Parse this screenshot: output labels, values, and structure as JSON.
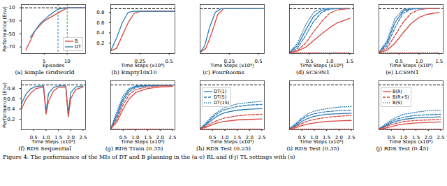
{
  "figure_caption": "Figure 4: The performance of the MIs of DT and B planning in the (a-e) RL and (f-j) TL settings with (s)",
  "chart_data": [
    {
      "type": "line",
      "title": "(a) Simple Gridworld",
      "xlabel": "Episodes",
      "ylabel": "Performance (Env)",
      "xlim": [
        0,
        14
      ],
      "xticks": [
        5,
        10
      ],
      "ylim": [
        -80,
        -5
      ],
      "yticks": [
        -70,
        -50,
        -30,
        -10
      ],
      "reference_y": -10,
      "reference_x": [
        {
          "value": 8,
          "color": "#2c7bb6"
        },
        {
          "value": 10,
          "color": "#2ca02c"
        }
      ],
      "legend": "lower right",
      "legend_entries": [
        "B",
        "DT"
      ],
      "series": [
        {
          "name": "B",
          "color": "#d9453d",
          "line_style": "solid",
          "x": [
            1,
            3,
            5,
            7,
            9,
            10,
            12,
            14
          ],
          "values": [
            -75,
            -45,
            -30,
            -22,
            -14,
            -10,
            -10,
            -10
          ]
        },
        {
          "name": "DT",
          "color": "#2c7bb6",
          "line_style": "solid",
          "x": [
            2,
            4,
            6,
            8,
            10,
            12,
            14
          ],
          "values": [
            -55,
            -35,
            -22,
            -12,
            -10,
            -10,
            -10
          ]
        }
      ]
    },
    {
      "type": "line",
      "title": "(b) Empty10x10",
      "xlabel": "Time Steps (x10⁶)",
      "xlim": [
        0,
        0.55
      ],
      "xticks": [
        0.25,
        0.5
      ],
      "ylim": [
        0,
        0.95
      ],
      "yticks": [
        0.2,
        0.4,
        0.6,
        0.8
      ],
      "reference_y": 0.87,
      "series": [
        {
          "name": "B",
          "color": "#d9453d",
          "line_style": "solid",
          "x": [
            0,
            0.05,
            0.1,
            0.15,
            0.2,
            0.25,
            0.3,
            0.55
          ],
          "values": [
            0.05,
            0.1,
            0.35,
            0.6,
            0.78,
            0.82,
            0.82,
            0.82
          ]
        },
        {
          "name": "DT",
          "color": "#2c7bb6",
          "line_style": "solid",
          "x": [
            0,
            0.05,
            0.1,
            0.15,
            0.2,
            0.55
          ],
          "values": [
            0.05,
            0.3,
            0.6,
            0.8,
            0.82,
            0.82
          ]
        }
      ]
    },
    {
      "type": "line",
      "title": "(c) FourRooms",
      "xlabel": "Time Steps (x10⁶)",
      "xlim": [
        0,
        0.55
      ],
      "xticks": [
        0.25,
        0.5
      ],
      "ylim": [
        0,
        0.95
      ],
      "tick_labels": "x",
      "reference_y": 0.87,
      "series": [
        {
          "name": "B",
          "color": "#d9453d",
          "line_style": "solid",
          "x": [
            0,
            0.05,
            0.1,
            0.15,
            0.2,
            0.25,
            0.55
          ],
          "values": [
            0.02,
            0.1,
            0.4,
            0.75,
            0.87,
            0.87,
            0.87
          ]
        },
        {
          "name": "DT",
          "color": "#2c7bb6",
          "line_style": "solid",
          "x": [
            0,
            0.04,
            0.08,
            0.13,
            0.18,
            0.55
          ],
          "values": [
            0.02,
            0.15,
            0.5,
            0.8,
            0.87,
            0.87
          ]
        }
      ]
    },
    {
      "type": "line",
      "title": "(d) SCS9N1",
      "xlabel": "Time Steps (x10⁶)",
      "xlim": [
        0,
        1.6
      ],
      "xticks": [
        0.5,
        {
          "value": 1,
          "label": "1.0"
        },
        1.5
      ],
      "ylim": [
        0,
        0.95
      ],
      "tick_labels": "x",
      "reference_y": 0.87,
      "x": [
        0,
        0.2,
        0.4,
        0.6,
        0.8,
        1.0,
        1.2,
        1.5
      ],
      "series": [
        {
          "name": "DT(1)",
          "color": "#2c7bb6",
          "line_style": "solid",
          "values": [
            0.02,
            0.15,
            0.45,
            0.72,
            0.84,
            0.87,
            0.87,
            0.87
          ]
        },
        {
          "name": "DT(5)",
          "color": "#2c7bb6",
          "line_style": "dashed",
          "values": [
            0.02,
            0.1,
            0.35,
            0.62,
            0.8,
            0.86,
            0.87,
            0.87
          ]
        },
        {
          "name": "DT(15)",
          "color": "#2c7bb6",
          "line_style": "dotted",
          "values": [
            0.02,
            0.2,
            0.55,
            0.8,
            0.87,
            0.87,
            0.87,
            0.87
          ]
        },
        {
          "name": "B(R)",
          "color": "#d9453d",
          "line_style": "solid",
          "values": [
            0.02,
            0.05,
            0.12,
            0.25,
            0.38,
            0.5,
            0.6,
            0.68
          ]
        },
        {
          "name": "B(R+S)",
          "color": "#d9453d",
          "line_style": "dashed",
          "values": [
            0.02,
            0.06,
            0.2,
            0.42,
            0.62,
            0.78,
            0.85,
            0.87
          ]
        },
        {
          "name": "B(S)",
          "color": "#d9453d",
          "line_style": "dotted",
          "values": [
            0.01,
            0.01,
            0.01,
            0.01,
            0.01,
            0.01,
            0.01,
            0.01
          ]
        }
      ]
    },
    {
      "type": "line",
      "title": "(e) LCS9N1",
      "xlabel": "Time Steps (x10⁶)",
      "xlim": [
        0,
        1.6
      ],
      "xticks": [
        0.5,
        {
          "value": 1,
          "label": "1.0"
        },
        1.5
      ],
      "ylim": [
        0,
        0.95
      ],
      "tick_labels": "x",
      "reference_y": 0.87,
      "x": [
        0,
        0.2,
        0.4,
        0.6,
        0.8,
        1.0,
        1.2,
        1.5
      ],
      "series": [
        {
          "name": "DT(1)",
          "color": "#2c7bb6",
          "line_style": "solid",
          "values": [
            0.02,
            0.2,
            0.6,
            0.82,
            0.87,
            0.87,
            0.87,
            0.87
          ]
        },
        {
          "name": "DT(5)",
          "color": "#2c7bb6",
          "line_style": "dashed",
          "values": [
            0.02,
            0.15,
            0.5,
            0.78,
            0.86,
            0.87,
            0.87,
            0.87
          ]
        },
        {
          "name": "DT(15)",
          "color": "#2c7bb6",
          "line_style": "dotted",
          "values": [
            0.02,
            0.25,
            0.68,
            0.85,
            0.87,
            0.87,
            0.87,
            0.87
          ]
        },
        {
          "name": "B(R)",
          "color": "#d9453d",
          "line_style": "solid",
          "values": [
            0.02,
            0.06,
            0.2,
            0.4,
            0.58,
            0.7,
            0.76,
            0.8
          ]
        },
        {
          "name": "B(R+S)",
          "color": "#d9453d",
          "line_style": "dashed",
          "values": [
            0.02,
            0.1,
            0.35,
            0.6,
            0.78,
            0.85,
            0.87,
            0.87
          ]
        },
        {
          "name": "B(S)",
          "color": "#d9453d",
          "line_style": "dotted",
          "values": [
            0.01,
            0.01,
            0.01,
            0.01,
            0.01,
            0.01,
            0.01,
            0.01
          ]
        }
      ]
    },
    {
      "type": "line",
      "title": "(f) RDS Sequential",
      "xlabel": "Time Steps (x10⁶)",
      "ylabel": "Performance (Env)",
      "xlim": [
        0,
        2.6
      ],
      "xticks": [
        0.5,
        {
          "value": 1,
          "label": "1.0"
        },
        1.5,
        {
          "value": 2,
          "label": "2.0"
        },
        2.5
      ],
      "ylim": [
        0,
        0.95
      ],
      "yticks": [
        0.2,
        0.4,
        0.6,
        0.8
      ],
      "reference_y": 0.87,
      "x": [
        0,
        0.2,
        0.4,
        0.6,
        0.9,
        1.0,
        1.1,
        1.3,
        1.5,
        1.8,
        1.9,
        2.0,
        2.2,
        2.5
      ],
      "series": [
        {
          "name": "DT(1)",
          "color": "#2c7bb6",
          "line_style": "solid",
          "values": [
            0.5,
            0.7,
            0.8,
            0.84,
            0.85,
            0.35,
            0.7,
            0.82,
            0.85,
            0.85,
            0.3,
            0.72,
            0.83,
            0.85
          ]
        },
        {
          "name": "B(R)",
          "color": "#d9453d",
          "line_style": "solid",
          "values": [
            0.4,
            0.6,
            0.72,
            0.8,
            0.83,
            0.3,
            0.55,
            0.75,
            0.82,
            0.83,
            0.25,
            0.6,
            0.78,
            0.83
          ]
        }
      ]
    },
    {
      "type": "line",
      "title": "(g) RDS Train (0.35)",
      "xlabel": "Time Steps (x10⁶)",
      "xlim": [
        0,
        2.6
      ],
      "xticks": [
        0.5,
        {
          "value": 1,
          "label": "1.0"
        },
        1.5,
        {
          "value": 2,
          "label": "2.0"
        },
        2.5
      ],
      "ylim": [
        0,
        0.95
      ],
      "tick_labels": "x",
      "reference_y": 0.87,
      "x": [
        0,
        0.25,
        0.5,
        0.75,
        1.0,
        1.5,
        2.0,
        2.5
      ],
      "series": [
        {
          "name": "DT(1)",
          "color": "#2c7bb6",
          "line_style": "solid",
          "values": [
            0.02,
            0.3,
            0.6,
            0.78,
            0.84,
            0.86,
            0.86,
            0.86
          ]
        },
        {
          "name": "DT(5)",
          "color": "#2c7bb6",
          "line_style": "dashed",
          "values": [
            0.02,
            0.25,
            0.55,
            0.74,
            0.82,
            0.85,
            0.86,
            0.86
          ]
        },
        {
          "name": "DT(15)",
          "color": "#2c7bb6",
          "line_style": "dotted",
          "values": [
            0.02,
            0.35,
            0.66,
            0.8,
            0.85,
            0.86,
            0.86,
            0.86
          ]
        },
        {
          "name": "B(R)",
          "color": "#d9453d",
          "line_style": "solid",
          "values": [
            0.02,
            0.15,
            0.4,
            0.6,
            0.72,
            0.8,
            0.83,
            0.84
          ]
        },
        {
          "name": "B(R+S)",
          "color": "#d9453d",
          "line_style": "dashed",
          "values": [
            0.02,
            0.2,
            0.48,
            0.68,
            0.78,
            0.83,
            0.85,
            0.85
          ]
        },
        {
          "name": "B(S)",
          "color": "#d9453d",
          "line_style": "dotted",
          "values": [
            0.01,
            0.01,
            0.01,
            0.01,
            0.01,
            0.01,
            0.01,
            0.01
          ]
        }
      ]
    },
    {
      "type": "line",
      "title": "(h) RDS Test (0.25)",
      "xlabel": "Time Steps (x10⁶)",
      "xlim": [
        0,
        2.6
      ],
      "xticks": [
        0.5,
        {
          "value": 1,
          "label": "1.0"
        },
        1.5,
        {
          "value": 2,
          "label": "2.0"
        },
        2.5
      ],
      "ylim": [
        0,
        0.95
      ],
      "tick_labels": "x",
      "reference_y": 0.87,
      "legend": "upper left",
      "legend_entries": [
        "DT(1)",
        "DT(5)",
        "DT(15)"
      ],
      "x": [
        0,
        0.25,
        0.5,
        0.75,
        1.0,
        1.5,
        2.0,
        2.5
      ],
      "series": [
        {
          "name": "DT(1)",
          "color": "#2c7bb6",
          "line_style": "solid",
          "values": [
            0.02,
            0.1,
            0.2,
            0.28,
            0.33,
            0.38,
            0.4,
            0.41
          ]
        },
        {
          "name": "DT(5)",
          "color": "#2c7bb6",
          "line_style": "dashed",
          "values": [
            0.02,
            0.12,
            0.24,
            0.33,
            0.39,
            0.45,
            0.48,
            0.49
          ]
        },
        {
          "name": "DT(15)",
          "color": "#2c7bb6",
          "line_style": "dotted",
          "values": [
            0.02,
            0.14,
            0.27,
            0.36,
            0.43,
            0.5,
            0.53,
            0.55
          ]
        },
        {
          "name": "B(R)",
          "color": "#d9453d",
          "line_style": "solid",
          "values": [
            0.02,
            0.05,
            0.1,
            0.14,
            0.16,
            0.19,
            0.2,
            0.21
          ]
        },
        {
          "name": "B(R+S)",
          "color": "#d9453d",
          "line_style": "dashed",
          "values": [
            0.02,
            0.07,
            0.14,
            0.19,
            0.23,
            0.27,
            0.29,
            0.3
          ]
        },
        {
          "name": "B(S)",
          "color": "#d9453d",
          "line_style": "dotted",
          "values": [
            0.01,
            0.01,
            0.01,
            0.01,
            0.01,
            0.01,
            0.01,
            0.01
          ]
        }
      ]
    },
    {
      "type": "line",
      "title": "(i) RDS Test (0.35)",
      "xlabel": "Time Steps (x10⁶)",
      "xlim": [
        0,
        2.6
      ],
      "xticks": [
        0.5,
        {
          "value": 1,
          "label": "1.0"
        },
        1.5,
        {
          "value": 2,
          "label": "2.0"
        },
        2.5
      ],
      "ylim": [
        0,
        0.95
      ],
      "tick_labels": "x",
      "reference_y": 0.87,
      "x": [
        0,
        0.25,
        0.5,
        0.75,
        1.0,
        1.5,
        2.0,
        2.5
      ],
      "series": [
        {
          "name": "DT(1)",
          "color": "#2c7bb6",
          "line_style": "solid",
          "values": [
            0.02,
            0.08,
            0.16,
            0.22,
            0.26,
            0.3,
            0.31,
            0.32
          ]
        },
        {
          "name": "DT(5)",
          "color": "#2c7bb6",
          "line_style": "dashed",
          "values": [
            0.02,
            0.1,
            0.2,
            0.27,
            0.31,
            0.35,
            0.37,
            0.38
          ]
        },
        {
          "name": "DT(15)",
          "color": "#2c7bb6",
          "line_style": "dotted",
          "values": [
            0.02,
            0.12,
            0.23,
            0.31,
            0.36,
            0.41,
            0.44,
            0.45
          ]
        },
        {
          "name": "B(R)",
          "color": "#d9453d",
          "line_style": "solid",
          "values": [
            0.02,
            0.04,
            0.08,
            0.11,
            0.13,
            0.16,
            0.17,
            0.18
          ]
        },
        {
          "name": "B(R+S)",
          "color": "#d9453d",
          "line_style": "dashed",
          "values": [
            0.02,
            0.06,
            0.12,
            0.17,
            0.2,
            0.24,
            0.26,
            0.28
          ]
        },
        {
          "name": "B(S)",
          "color": "#d9453d",
          "line_style": "dotted",
          "values": [
            0.01,
            0.01,
            0.01,
            0.01,
            0.01,
            0.01,
            0.01,
            0.01
          ]
        }
      ]
    },
    {
      "type": "line",
      "title": "(j) RDS Test (0.45)",
      "xlabel": "Time Steps (x10⁶)",
      "xlim": [
        0,
        2.6
      ],
      "xticks": [
        0.5,
        {
          "value": 1,
          "label": "1.0"
        },
        1.5,
        {
          "value": 2,
          "label": "2.0"
        },
        2.5
      ],
      "ylim": [
        0,
        0.95
      ],
      "tick_labels": "x",
      "reference_y": 0.87,
      "legend": "upper left",
      "legend_entries": [
        "B(R)",
        "B(R+S)",
        "B(S)"
      ],
      "x": [
        0,
        0.25,
        0.5,
        0.75,
        1.0,
        1.5,
        2.0,
        2.5
      ],
      "series": [
        {
          "name": "DT(1)",
          "color": "#2c7bb6",
          "line_style": "solid",
          "values": [
            0.02,
            0.07,
            0.13,
            0.17,
            0.2,
            0.23,
            0.24,
            0.25
          ]
        },
        {
          "name": "DT(5)",
          "color": "#2c7bb6",
          "line_style": "dashed",
          "values": [
            0.02,
            0.08,
            0.16,
            0.21,
            0.24,
            0.28,
            0.29,
            0.3
          ]
        },
        {
          "name": "DT(15)",
          "color": "#2c7bb6",
          "line_style": "dotted",
          "values": [
            0.02,
            0.1,
            0.19,
            0.25,
            0.3,
            0.34,
            0.37,
            0.38
          ]
        },
        {
          "name": "B(R)",
          "color": "#d9453d",
          "line_style": "solid",
          "values": [
            0.02,
            0.03,
            0.06,
            0.09,
            0.11,
            0.13,
            0.14,
            0.15
          ]
        },
        {
          "name": "B(R+S)",
          "color": "#d9453d",
          "line_style": "dashed",
          "values": [
            0.02,
            0.05,
            0.1,
            0.13,
            0.16,
            0.18,
            0.19,
            0.2
          ]
        },
        {
          "name": "B(S)",
          "color": "#d9453d",
          "line_style": "dotted",
          "values": [
            0.01,
            0.01,
            0.01,
            0.01,
            0.01,
            0.01,
            0.01,
            0.01
          ]
        }
      ]
    }
  ]
}
